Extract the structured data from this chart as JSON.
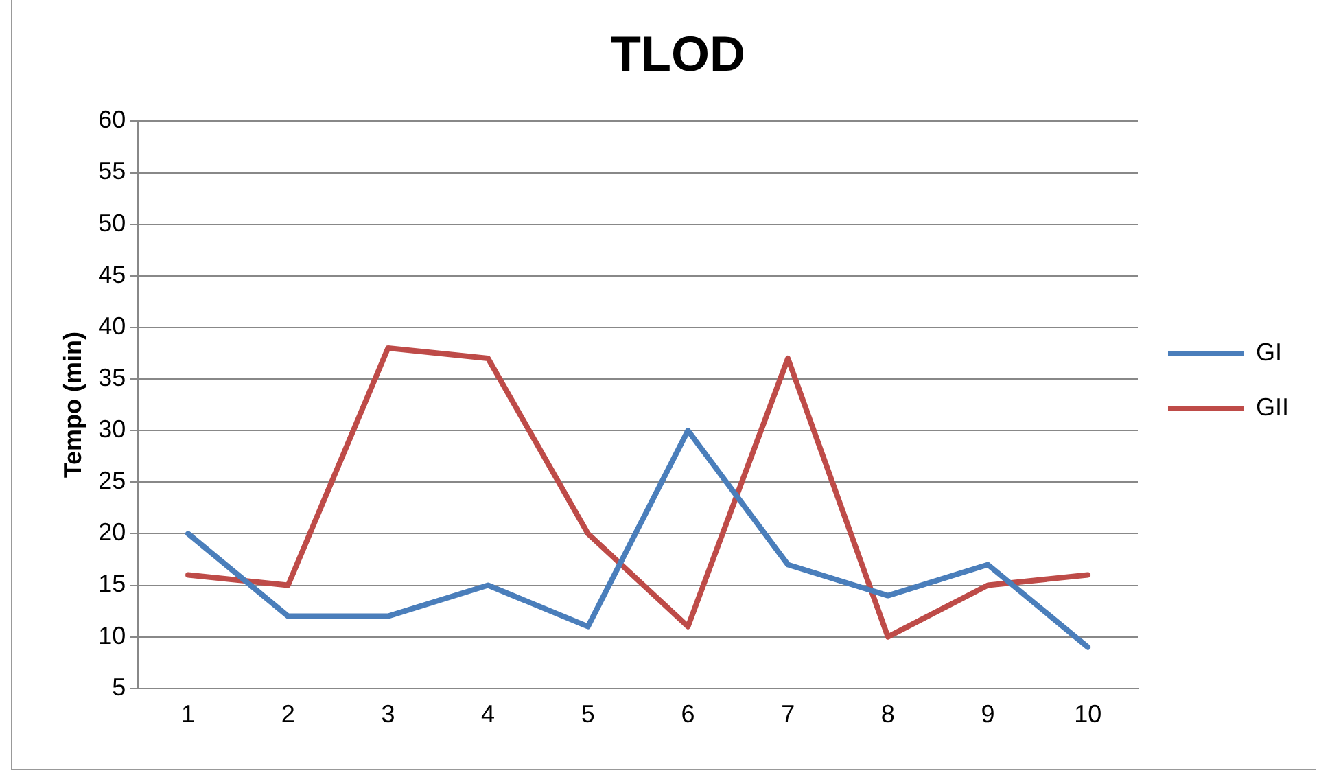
{
  "chart_data": {
    "type": "line",
    "title": "TLOD",
    "ylabel": "Tempo (min)",
    "categories": [
      "1",
      "2",
      "3",
      "4",
      "5",
      "6",
      "7",
      "8",
      "9",
      "10"
    ],
    "series": [
      {
        "name": "GI",
        "color": "#4a7ebb",
        "values": [
          20,
          12,
          12,
          15,
          11,
          30,
          17,
          14,
          17,
          9
        ]
      },
      {
        "name": "GII",
        "color": "#be4b48",
        "values": [
          16,
          15,
          38,
          37,
          20,
          11,
          37,
          10,
          15,
          16
        ]
      }
    ],
    "ylim": [
      5,
      60
    ],
    "yticks": [
      5,
      10,
      15,
      20,
      25,
      30,
      35,
      40,
      45,
      50,
      55,
      60
    ],
    "grid": "y",
    "legend": "right",
    "marker": "none",
    "line_style": "solid"
  }
}
